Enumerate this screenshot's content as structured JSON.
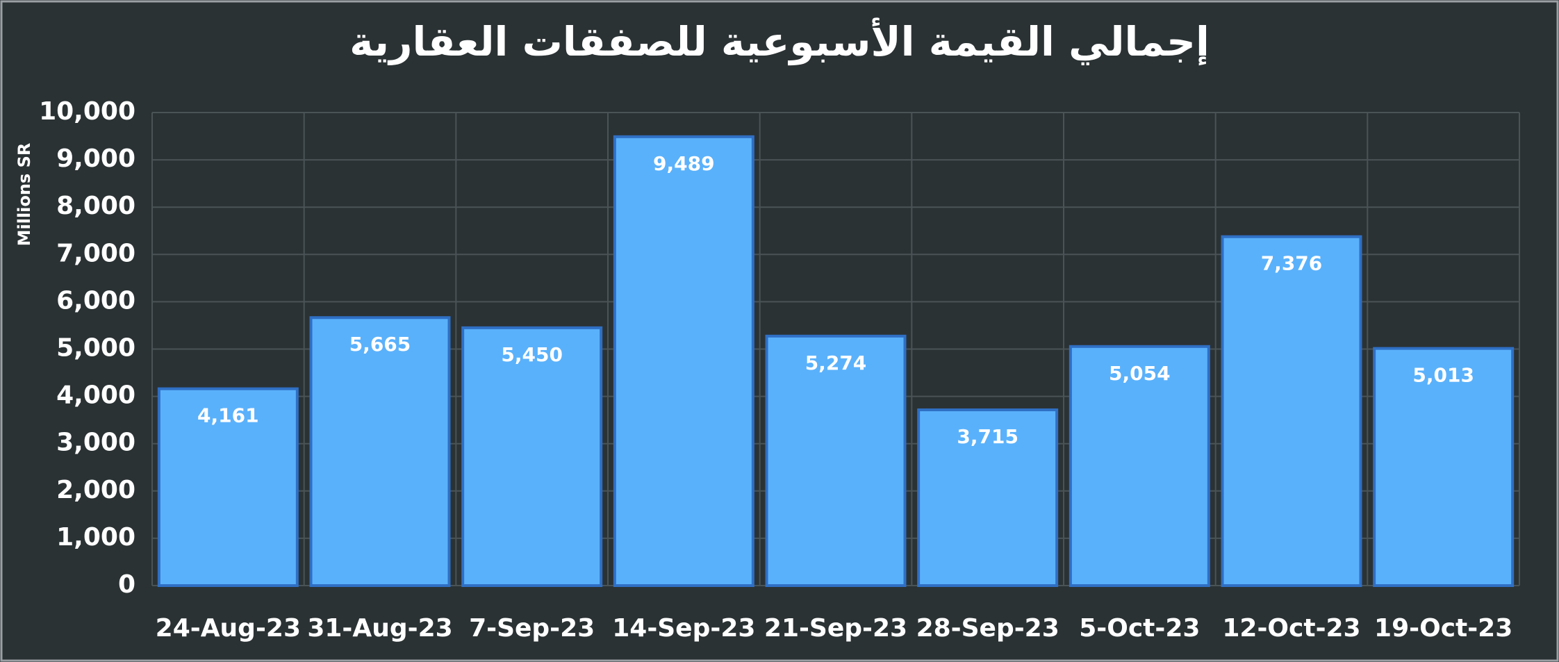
{
  "chart_data": {
    "type": "bar",
    "title": "إجمالي القيمة الأسبوعية للصفقات العقارية",
    "y_label": "Millions SR",
    "categories": [
      "24-Aug-23",
      "31-Aug-23",
      "7-Sep-23",
      "14-Sep-23",
      "21-Sep-23",
      "28-Sep-23",
      "5-Oct-23",
      "12-Oct-23",
      "19-Oct-23"
    ],
    "values": [
      4161,
      5665,
      5450,
      9489,
      5274,
      3715,
      5054,
      7376,
      5013
    ],
    "value_labels": [
      "4,161",
      "5,665",
      "5,450",
      "9,489",
      "5,274",
      "3,715",
      "5,054",
      "7,376",
      "5,013"
    ],
    "color": "#5ab1fb",
    "ylim": [
      0,
      10000
    ],
    "yticks": [
      0,
      {
        "value": 1000,
        "label": "1,000"
      },
      {
        "value": 2000,
        "label": "2,000"
      },
      {
        "value": 3000,
        "label": "3,000"
      },
      {
        "value": 4000,
        "label": "4,000"
      },
      {
        "value": 5000,
        "label": "5,000"
      },
      {
        "value": 6000,
        "label": "6,000"
      },
      {
        "value": 7000,
        "label": "7,000"
      },
      {
        "value": 8000,
        "label": "8,000"
      },
      {
        "value": 9000,
        "label": "9,000"
      },
      {
        "value": 10000,
        "label": "10,000"
      }
    ],
    "grid": true
  }
}
